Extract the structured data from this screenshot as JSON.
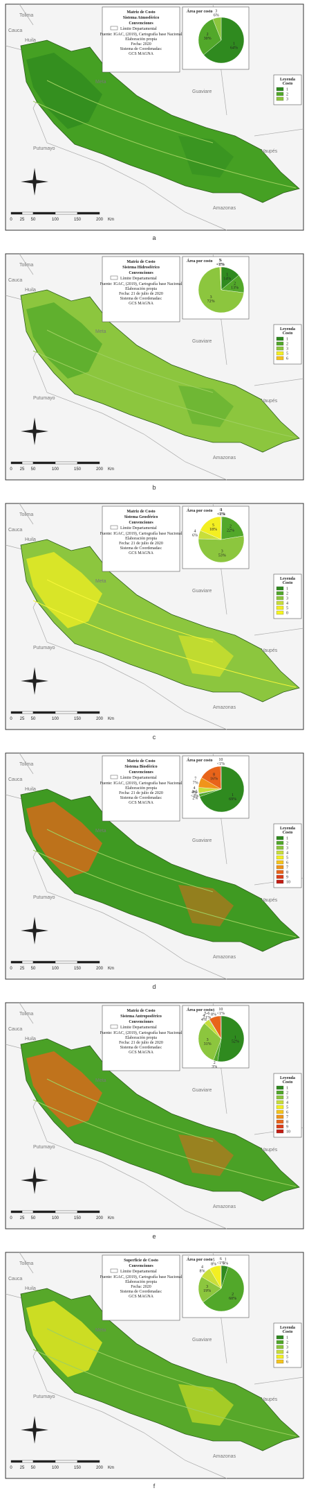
{
  "panels": [
    {
      "letter": "a",
      "title_lines": [
        "Matriz de Costo",
        "Sistema Atmosférico",
        "Convenciones"
      ],
      "boundary": "Límite Departamental",
      "source_lines": [
        "Fuente: IGAC, (2019), Cartografía base Nacional",
        "Elaboración propia",
        "Fecha: 2020",
        "Sistema de Coordenadas:",
        "GCS MAGNA"
      ],
      "pie": {
        "title": "Área por costo",
        "slices": [
          {
            "label": "1",
            "value": 64,
            "value_label": "64%"
          },
          {
            "label": "2",
            "value": 30,
            "value_label": "30%"
          },
          {
            "label": "3",
            "value": 6,
            "value_label": "6%"
          }
        ]
      },
      "legend_title": [
        "Leyenda",
        "Costo"
      ],
      "legend": [
        "1",
        "2",
        "3"
      ],
      "scale": [
        "0",
        "25",
        "50",
        "100",
        "150",
        "200",
        "Km"
      ]
    },
    {
      "letter": "b",
      "title_lines": [
        "Matriz de Costo",
        "Sistema Hidrosférico",
        "Convenciones"
      ],
      "boundary": "Límite Departamental",
      "source_lines": [
        "Fuente: IGAC, (2019), Cartografía base Nacional",
        "Elaboración propia",
        "Fecha: 21 de julio de 2020",
        "Sistema de Coordenadas:",
        "GCS MAGNA"
      ],
      "pie": {
        "title": "Área por costo",
        "slices": [
          {
            "label": "1",
            "value": 14,
            "value_label": "14%"
          },
          {
            "label": "2",
            "value": 13,
            "value_label": "13%"
          },
          {
            "label": "3",
            "value": 72,
            "value_label": "72%"
          },
          {
            "label": "5",
            "value": 0.5,
            "value_label": "<1%"
          },
          {
            "label": "6",
            "value": 0.5,
            "value_label": "<1%"
          }
        ]
      },
      "legend_title": [
        "Leyenda",
        "Costo"
      ],
      "legend": [
        "1",
        "2",
        "3",
        "5",
        "6"
      ],
      "scale": [
        "0",
        "25",
        "50",
        "100",
        "150",
        "200",
        "Km"
      ]
    },
    {
      "letter": "c",
      "title_lines": [
        "Matriz de Costo",
        "Sistema Geosférico",
        "Convenciones"
      ],
      "boundary": "Límite Departamental",
      "source_lines": [
        "Fuente: IGAC, (2019), Cartografía base Nacional",
        "Elaboración propia",
        "Fecha: 21 de julio de 2020",
        "Sistema de Coordenadas:",
        "GCS MAGNA"
      ],
      "pie": {
        "title": "Área por costo",
        "slices": [
          {
            "label": "1",
            "value": 0.5,
            "value_label": "<1%"
          },
          {
            "label": "2",
            "value": 22,
            "value_label": "22%"
          },
          {
            "label": "3",
            "value": 53,
            "value_label": "53%"
          },
          {
            "label": "4",
            "value": 6,
            "value_label": "6%"
          },
          {
            "label": "5",
            "value": 18,
            "value_label": "18%"
          },
          {
            "label": "0",
            "value": 0.5,
            "value_label": "<1%"
          }
        ]
      },
      "legend_title": [
        "Leyenda",
        "Costo"
      ],
      "legend": [
        "1",
        "2",
        "3",
        "4",
        "5",
        "0"
      ],
      "scale": [
        "0",
        "25",
        "50",
        "100",
        "150",
        "200",
        "Km"
      ]
    },
    {
      "letter": "d",
      "title_lines": [
        "Matriz de Costo",
        "Sistema Biosférico",
        "Convenciones"
      ],
      "boundary": "Límite Departamental",
      "source_lines": [
        "Fuente: IGAC, (2019), Cartografía base Nacional",
        "Elaboración propia",
        "Fecha: 21 de julio de 2020",
        "Sistema de Coordenadas:",
        "GCS MAGNA"
      ],
      "pie": {
        "title": "Área por costo",
        "slices": [
          {
            "label": "1",
            "value": 69,
            "value_label": "69%"
          },
          {
            "label": "2",
            "value": 2,
            "value_label": "2%"
          },
          {
            "label": "3-5",
            "value": 0.5,
            "value_label": "<1%"
          },
          {
            "label": "4",
            "value": 4,
            "value_label": "4%"
          },
          {
            "label": "7",
            "value": 7,
            "value_label": "7%"
          },
          {
            "label": "8",
            "value": 16,
            "value_label": "16%"
          },
          {
            "label": "10",
            "value": 0.5,
            "value_label": "<1%"
          }
        ]
      },
      "legend_title": [
        "Leyenda",
        "Costo"
      ],
      "legend": [
        "1",
        "2",
        "3",
        "4",
        "5",
        "6",
        "7",
        "8",
        "9",
        "10"
      ],
      "scale": [
        "0",
        "25",
        "50",
        "100",
        "150",
        "200",
        "Km"
      ]
    },
    {
      "letter": "e",
      "title_lines": [
        "Matriz de Costo",
        "Sistema Antroposférico",
        "Convenciones"
      ],
      "boundary": "Límite Departamental",
      "source_lines": [
        "Fuente: IGAC, (2019), Cartografía base Nacional",
        "Elaboración propia",
        "Fecha: 21 de julio de 2020",
        "Sistema de Coordenadas:",
        "GCS MAGNA"
      ],
      "pie": {
        "title": "Área por costo",
        "slices": [
          {
            "label": "1",
            "value": 52,
            "value_label": "52%"
          },
          {
            "label": "2",
            "value": 3,
            "value_label": "3%"
          },
          {
            "label": "3",
            "value": 31,
            "value_label": "31%"
          },
          {
            "label": "4",
            "value": 4,
            "value_label": "4%"
          },
          {
            "label": "5-6",
            "value": 0.5,
            "value_label": "<1%"
          },
          {
            "label": "8",
            "value": 8,
            "value_label": "8%"
          },
          {
            "label": "10",
            "value": 0.5,
            "value_label": "<1%"
          }
        ]
      },
      "legend_title": [
        "Leyenda",
        "Costo"
      ],
      "legend": [
        "1",
        "2",
        "3",
        "4",
        "5",
        "6",
        "7",
        "8",
        "9",
        "10"
      ],
      "scale": [
        "0",
        "25",
        "50",
        "100",
        "150",
        "200",
        "Km"
      ]
    },
    {
      "letter": "f",
      "title_lines": [
        "Superficie de Costo",
        "Convenciones"
      ],
      "boundary": "Límite Departamental",
      "source_lines": [
        "Fuente: IGAC, (2019), Cartografía base Nacional",
        "Elaboración propia",
        "Fecha: 2020",
        "Sistema de Coordenadas:",
        "GCS MAGNA"
      ],
      "pie": {
        "title": "Área por costo",
        "slices": [
          {
            "label": "1",
            "value": 5,
            "value_label": "5%"
          },
          {
            "label": "2",
            "value": 60,
            "value_label": "60%"
          },
          {
            "label": "3",
            "value": 19,
            "value_label": "19%"
          },
          {
            "label": "4",
            "value": 8,
            "value_label": "8%"
          },
          {
            "label": "5",
            "value": 8,
            "value_label": "8%"
          },
          {
            "label": "6",
            "value": 0.5,
            "value_label": "<1%"
          }
        ]
      },
      "legend_title": [
        "Leyenda",
        "Costo"
      ],
      "legend": [
        "1",
        "2",
        "3",
        "4",
        "5",
        "6"
      ],
      "scale": [
        "0",
        "25",
        "50",
        "100",
        "150",
        "200",
        "Km"
      ]
    }
  ],
  "places": [
    "Tolima",
    "Cauca",
    "Huila",
    "Meta",
    "Guaviare",
    "Putumayo",
    "Vaupés",
    "Amazonas"
  ]
}
